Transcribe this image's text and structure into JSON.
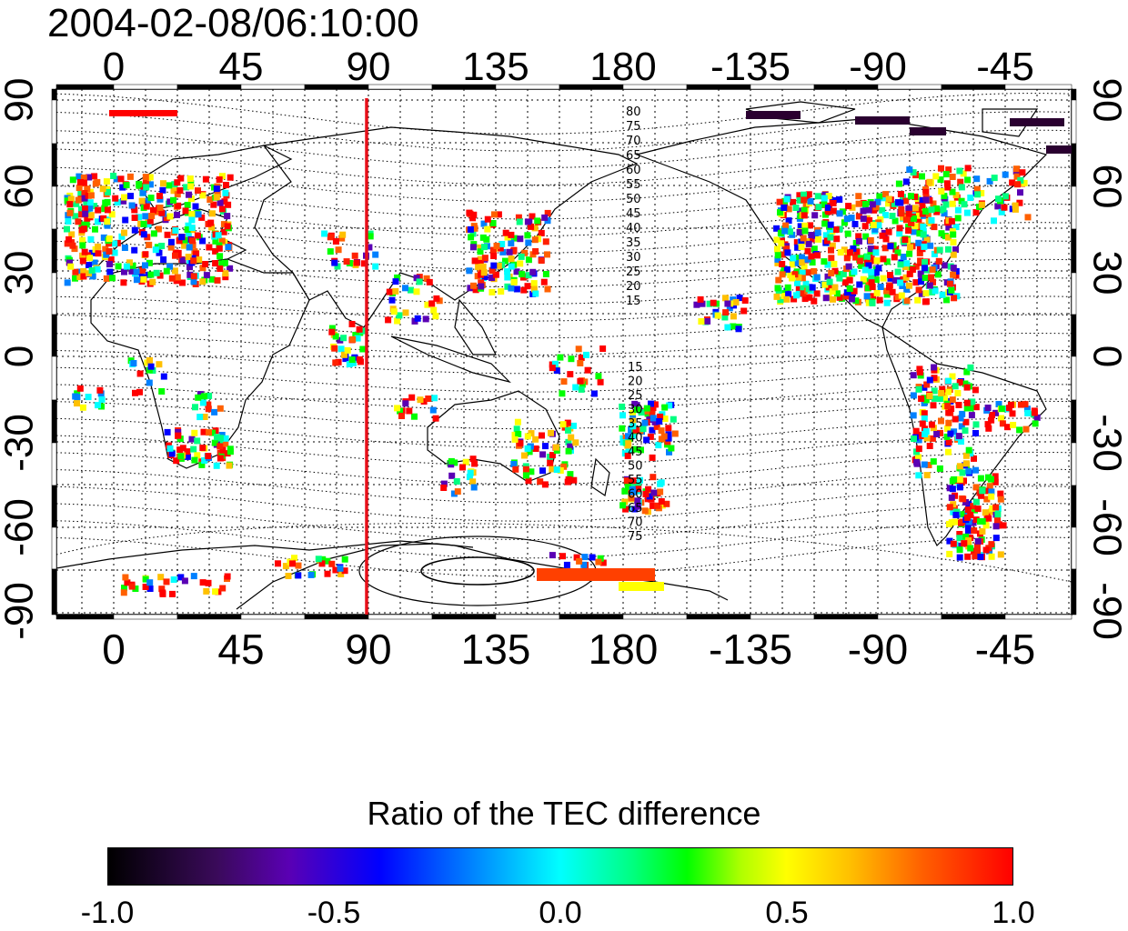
{
  "title": "2004-02-08/06:10:00",
  "lon_ticks": [
    "0",
    "45",
    "90",
    "135",
    "180",
    "-135",
    "-90",
    "-45"
  ],
  "lat_ticks": [
    "90",
    "60",
    "30",
    "0",
    "-30",
    "-60",
    "-90"
  ],
  "contour_labels_north": [
    "80",
    "75",
    "70",
    "65",
    "60",
    "55",
    "50",
    "45",
    "40",
    "35",
    "30",
    "25",
    "20",
    "15"
  ],
  "contour_labels_south": [
    "15",
    "20",
    "25",
    "30",
    "35",
    "40",
    "45",
    "50",
    "55",
    "60",
    "65",
    "70",
    "75"
  ],
  "marker_longitude": 90,
  "colors": {
    "marker": "#e8101a",
    "land": "#000000"
  },
  "colorbar": {
    "title": "Ratio of the TEC difference",
    "min": -1.0,
    "max": 1.0,
    "labels": [
      "-1.0",
      "-0.5",
      "0.0",
      "0.5",
      "1.0"
    ]
  }
}
